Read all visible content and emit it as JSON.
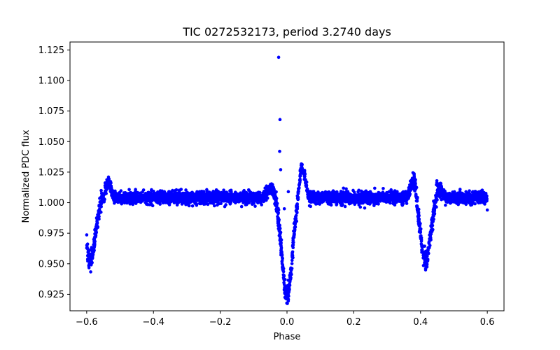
{
  "chart_data": {
    "type": "scatter",
    "title": "TIC 0272532173, period 3.2740 days",
    "xlabel": "Phase",
    "ylabel": "Normalized PDC flux",
    "xlim": [
      -0.65,
      0.65
    ],
    "ylim": [
      0.9115,
      1.1315
    ],
    "xticks": [
      -0.6,
      -0.4,
      -0.2,
      0.0,
      0.2,
      0.4,
      0.6
    ],
    "xtick_labels": [
      "−0.6",
      "−0.4",
      "−0.2",
      "0.0",
      "0.2",
      "0.4",
      "0.6"
    ],
    "yticks": [
      0.925,
      0.95,
      0.975,
      1.0,
      1.025,
      1.05,
      1.075,
      1.1,
      1.125
    ],
    "ytick_labels": [
      "0.925",
      "0.950",
      "0.975",
      "1.000",
      "1.025",
      "1.050",
      "1.075",
      "1.100",
      "1.125"
    ],
    "grid": false,
    "series": [
      {
        "name": "PDC flux",
        "color": "#0000ff",
        "marker": "dot",
        "baseline_flux": 1.004,
        "baseline_scatter": 0.004,
        "eclipses": [
          {
            "center": 0.0,
            "depth": 0.08,
            "width": 0.022,
            "label": "primary"
          },
          {
            "center": -0.59,
            "depth": 0.05,
            "width": 0.022,
            "label": "secondary"
          },
          {
            "center": 0.415,
            "depth": 0.05,
            "width": 0.022,
            "label": "secondary"
          }
        ],
        "bumps": [
          {
            "center": 0.045,
            "height": 0.026,
            "width": 0.012
          },
          {
            "center": -0.045,
            "height": 0.008,
            "width": 0.02
          },
          {
            "center": -0.535,
            "height": 0.012,
            "width": 0.012
          },
          {
            "center": 0.38,
            "height": 0.018,
            "width": 0.012
          },
          {
            "center": 0.455,
            "height": 0.01,
            "width": 0.012
          }
        ],
        "outliers": [
          {
            "x": -0.025,
            "y": 1.119
          },
          {
            "x": -0.021,
            "y": 1.068
          },
          {
            "x": -0.022,
            "y": 1.042
          },
          {
            "x": -0.019,
            "y": 1.027
          },
          {
            "x": 0.004,
            "y": 1.009
          },
          {
            "x": -0.008,
            "y": 0.995
          },
          {
            "x": 0.6,
            "y": 0.994
          }
        ]
      }
    ]
  }
}
